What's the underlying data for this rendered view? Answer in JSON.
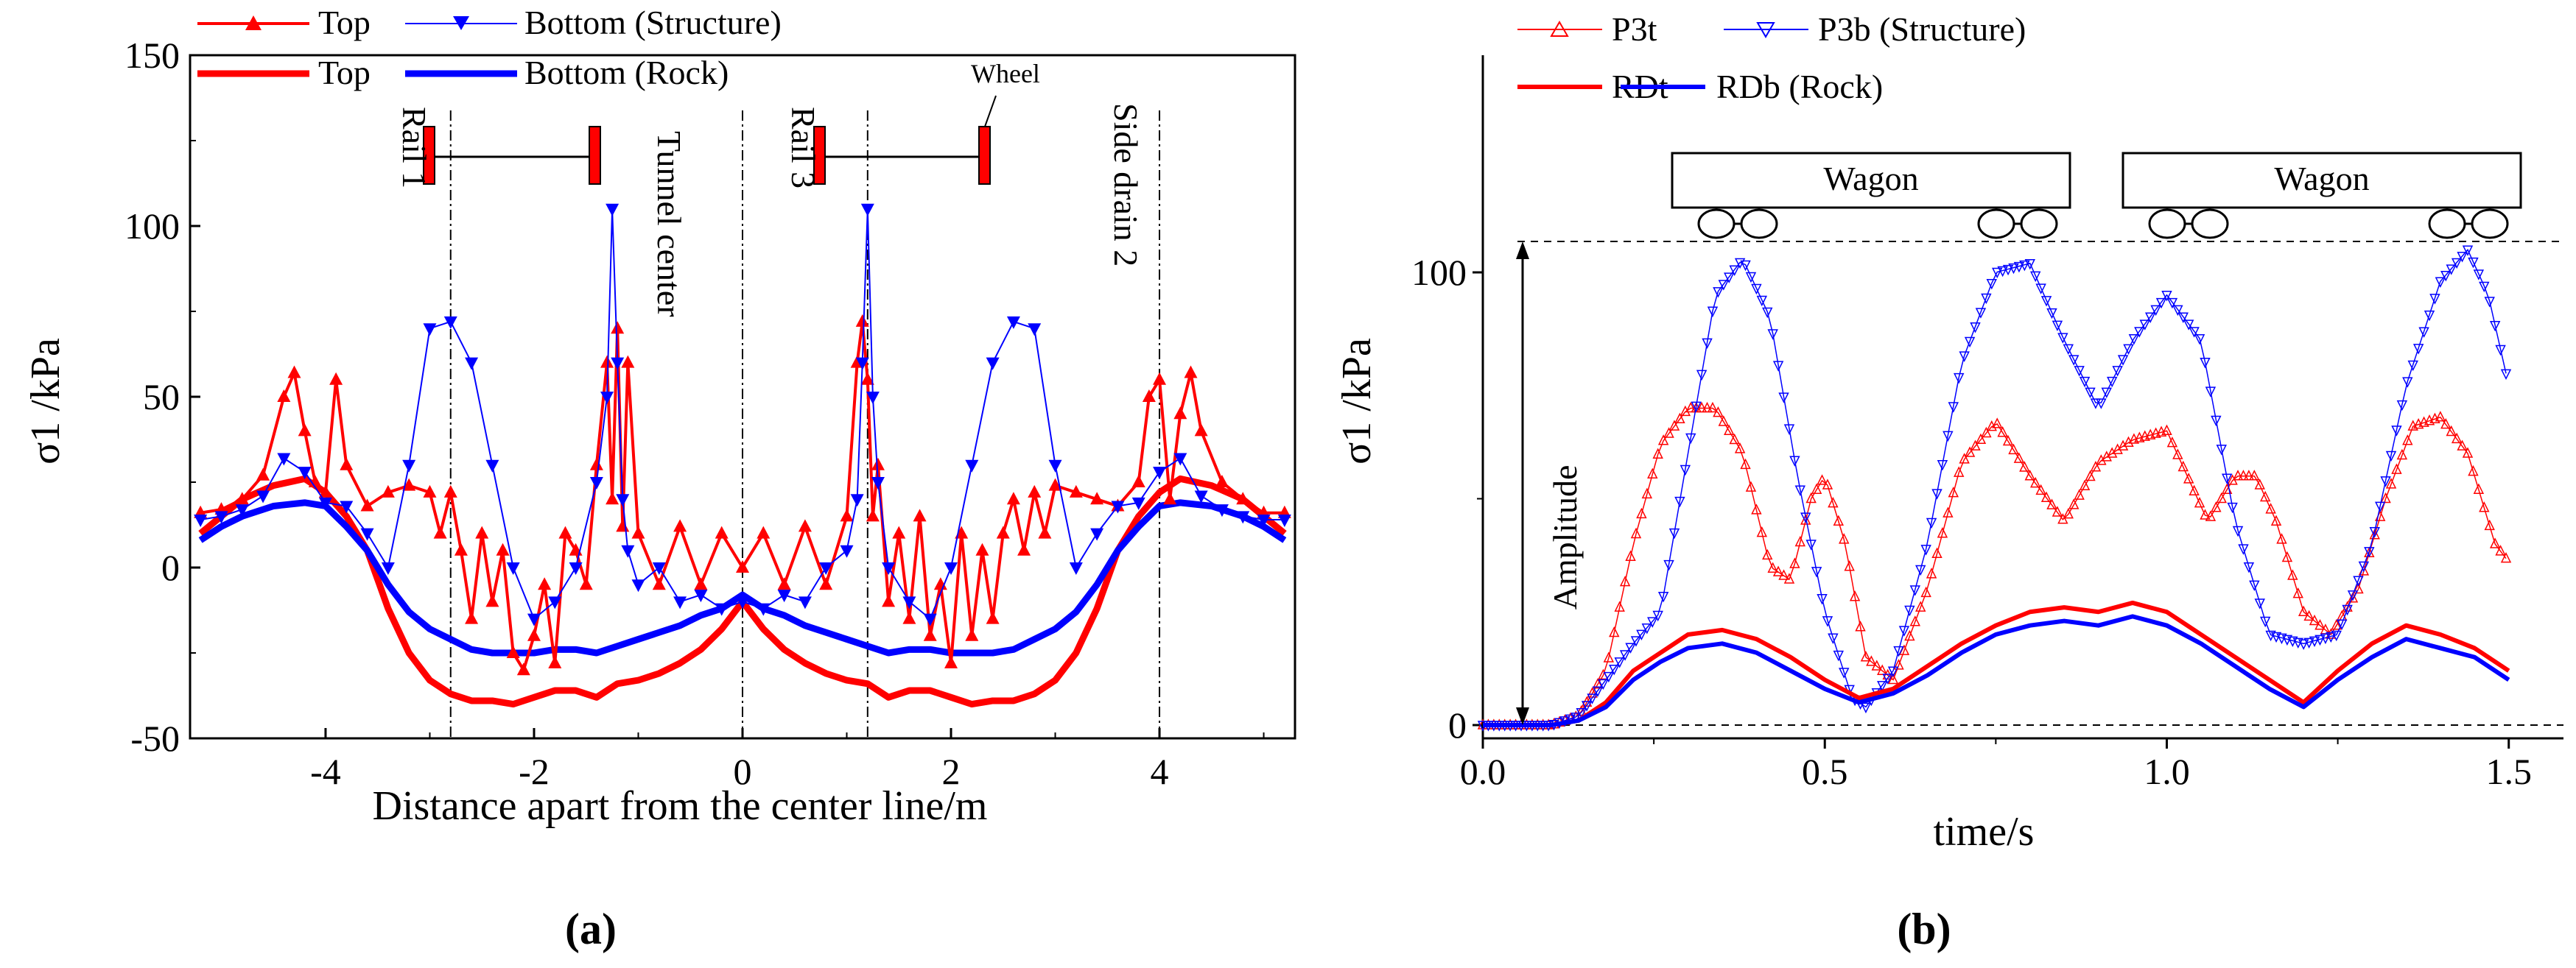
{
  "chart_data": [
    {
      "type": "line",
      "panel_label": "(a)",
      "xlabel": "Distance apart from the center line/m",
      "ylabel": "σ1 /kPa",
      "xlim": [
        -5.3,
        5.3
      ],
      "ylim": [
        -50,
        150
      ],
      "x_ticks": [
        "-4",
        "-2",
        "0",
        "2",
        "4"
      ],
      "y_ticks": [
        "-50",
        "0",
        "50",
        "100",
        "150"
      ],
      "legend": {
        "placement": "top",
        "entries": [
          "Top",
          "Bottom (Structure)",
          "Top",
          "Bottom (Rock)"
        ]
      },
      "annotations": {
        "rail1": "Rail 1",
        "tunnel_center": "Tunnel center",
        "rail3": "Rail 3",
        "side_drain": "Side drain 2",
        "wheel": "Wheel"
      },
      "vertical_lines_x": [
        -2.8,
        0,
        1.2,
        4.0
      ],
      "series": [
        {
          "name": "Top",
          "group": "Structure",
          "color": "#ff0000",
          "marker": "triangle-up",
          "x": [
            -5.2,
            -5.0,
            -4.8,
            -4.6,
            -4.4,
            -4.3,
            -4.2,
            -4.1,
            -4.0,
            -3.9,
            -3.8,
            -3.6,
            -3.4,
            -3.2,
            -3.0,
            -2.9,
            -2.8,
            -2.7,
            -2.6,
            -2.5,
            -2.4,
            -2.3,
            -2.2,
            -2.1,
            -2.0,
            -1.9,
            -1.8,
            -1.7,
            -1.6,
            -1.5,
            -1.4,
            -1.3,
            -1.25,
            -1.2,
            -1.15,
            -1.1,
            -1.0,
            -0.8,
            -0.6,
            -0.4,
            -0.2,
            0.0,
            0.2,
            0.4,
            0.6,
            0.8,
            1.0,
            1.1,
            1.15,
            1.2,
            1.25,
            1.3,
            1.4,
            1.5,
            1.6,
            1.7,
            1.8,
            1.9,
            2.0,
            2.1,
            2.2,
            2.3,
            2.4,
            2.5,
            2.6,
            2.7,
            2.8,
            2.9,
            3.0,
            3.2,
            3.4,
            3.6,
            3.8,
            3.9,
            4.0,
            4.1,
            4.2,
            4.3,
            4.4,
            4.6,
            4.8,
            5.0,
            5.2
          ],
          "values": [
            16,
            17,
            20,
            27,
            50,
            57,
            40,
            25,
            22,
            55,
            30,
            18,
            22,
            24,
            22,
            10,
            22,
            5,
            -15,
            10,
            -10,
            5,
            -25,
            -30,
            -20,
            -5,
            -28,
            10,
            5,
            -5,
            30,
            60,
            20,
            70,
            12,
            60,
            10,
            -5,
            12,
            -5,
            10,
            0,
            10,
            -5,
            12,
            -5,
            15,
            60,
            72,
            55,
            15,
            30,
            -10,
            10,
            -15,
            15,
            -20,
            -5,
            -28,
            10,
            -20,
            5,
            -15,
            10,
            20,
            5,
            22,
            10,
            24,
            22,
            20,
            18,
            25,
            50,
            55,
            20,
            45,
            57,
            40,
            25,
            20,
            16,
            16
          ]
        },
        {
          "name": "Bottom (Structure)",
          "group": "Structure",
          "color": "#0000ff",
          "marker": "triangle-down",
          "x": [
            -5.2,
            -5.0,
            -4.8,
            -4.6,
            -4.4,
            -4.2,
            -4.0,
            -3.8,
            -3.6,
            -3.4,
            -3.2,
            -3.0,
            -2.8,
            -2.6,
            -2.4,
            -2.2,
            -2.0,
            -1.8,
            -1.6,
            -1.4,
            -1.3,
            -1.25,
            -1.2,
            -1.15,
            -1.1,
            -1.0,
            -0.8,
            -0.6,
            -0.4,
            -0.2,
            0.0,
            0.2,
            0.4,
            0.6,
            0.8,
            1.0,
            1.1,
            1.15,
            1.2,
            1.25,
            1.3,
            1.4,
            1.6,
            1.8,
            2.0,
            2.2,
            2.4,
            2.6,
            2.8,
            3.0,
            3.2,
            3.4,
            3.6,
            3.8,
            4.0,
            4.2,
            4.4,
            4.6,
            4.8,
            5.0,
            5.2
          ],
          "values": [
            14,
            15,
            17,
            21,
            32,
            28,
            19,
            18,
            10,
            0,
            30,
            70,
            72,
            60,
            30,
            0,
            -15,
            -10,
            0,
            25,
            50,
            105,
            60,
            20,
            5,
            -5,
            0,
            -10,
            -8,
            -12,
            -10,
            -12,
            -8,
            -10,
            0,
            5,
            20,
            60,
            105,
            50,
            25,
            0,
            -10,
            -15,
            0,
            30,
            60,
            72,
            70,
            30,
            0,
            10,
            18,
            19,
            28,
            32,
            21,
            17,
            15,
            14,
            14
          ]
        },
        {
          "name": "Top",
          "group": "Rock",
          "color": "#ff0000",
          "marker": "none",
          "x": [
            -5.2,
            -5.0,
            -4.8,
            -4.5,
            -4.2,
            -4.0,
            -3.8,
            -3.6,
            -3.4,
            -3.2,
            -3.0,
            -2.8,
            -2.6,
            -2.4,
            -2.2,
            -2.0,
            -1.8,
            -1.6,
            -1.4,
            -1.2,
            -1.0,
            -0.8,
            -0.6,
            -0.4,
            -0.2,
            0.0,
            0.2,
            0.4,
            0.6,
            0.8,
            1.0,
            1.2,
            1.4,
            1.6,
            1.8,
            2.0,
            2.2,
            2.4,
            2.6,
            2.8,
            3.0,
            3.2,
            3.4,
            3.6,
            3.8,
            4.0,
            4.2,
            4.5,
            4.8,
            5.0,
            5.2
          ],
          "values": [
            10,
            15,
            20,
            24,
            26,
            22,
            15,
            5,
            -12,
            -25,
            -33,
            -37,
            -39,
            -39,
            -40,
            -38,
            -36,
            -36,
            -38,
            -34,
            -33,
            -31,
            -28,
            -24,
            -18,
            -10,
            -18,
            -24,
            -28,
            -31,
            -33,
            -34,
            -38,
            -36,
            -36,
            -38,
            -40,
            -39,
            -39,
            -37,
            -33,
            -25,
            -12,
            5,
            15,
            22,
            26,
            24,
            20,
            15,
            10
          ]
        },
        {
          "name": "Bottom (Rock)",
          "group": "Rock",
          "color": "#0000ff",
          "marker": "none",
          "x": [
            -5.2,
            -5.0,
            -4.8,
            -4.5,
            -4.2,
            -4.0,
            -3.8,
            -3.6,
            -3.4,
            -3.2,
            -3.0,
            -2.8,
            -2.6,
            -2.4,
            -2.2,
            -2.0,
            -1.8,
            -1.6,
            -1.4,
            -1.2,
            -1.0,
            -0.8,
            -0.6,
            -0.4,
            -0.2,
            0.0,
            0.2,
            0.4,
            0.6,
            0.8,
            1.0,
            1.2,
            1.4,
            1.6,
            1.8,
            2.0,
            2.2,
            2.4,
            2.6,
            2.8,
            3.0,
            3.2,
            3.4,
            3.6,
            3.8,
            4.0,
            4.2,
            4.5,
            4.8,
            5.0,
            5.2
          ],
          "values": [
            8,
            12,
            15,
            18,
            19,
            18,
            12,
            5,
            -5,
            -13,
            -18,
            -21,
            -24,
            -25,
            -25,
            -25,
            -24,
            -24,
            -25,
            -23,
            -21,
            -19,
            -17,
            -14,
            -12,
            -8,
            -12,
            -14,
            -17,
            -19,
            -21,
            -23,
            -25,
            -24,
            -24,
            -25,
            -25,
            -25,
            -24,
            -21,
            -18,
            -13,
            -5,
            5,
            12,
            18,
            19,
            18,
            15,
            12,
            8
          ]
        }
      ]
    },
    {
      "type": "line",
      "panel_label": "(b)",
      "xlabel": "time/s",
      "ylabel": "σ1 /kPa",
      "xlim": [
        0.0,
        1.58
      ],
      "ylim": [
        -5,
        150
      ],
      "x_ticks": [
        "0.0",
        "0.5",
        "1.0",
        "1.5"
      ],
      "y_ticks": [
        "0",
        "100"
      ],
      "legend": {
        "placement": "top-left",
        "entries": [
          "P3t",
          "P3b (Structure)",
          "RDt",
          "RDb (Rock)"
        ]
      },
      "annotations": {
        "amplitude": "Amplitude",
        "wagon1": "Wagon",
        "wagon2": "Wagon",
        "amplitude_range": [
          0,
          106
        ]
      },
      "series": [
        {
          "name": "P3t",
          "color": "#ff0000",
          "marker": "triangle-up-open",
          "x": [
            0.0,
            0.05,
            0.1,
            0.14,
            0.18,
            0.22,
            0.26,
            0.3,
            0.34,
            0.38,
            0.42,
            0.45,
            0.48,
            0.5,
            0.53,
            0.56,
            0.6,
            0.65,
            0.7,
            0.75,
            0.8,
            0.85,
            0.9,
            0.95,
            1.0,
            1.03,
            1.06,
            1.1,
            1.13,
            1.16,
            1.2,
            1.24,
            1.28,
            1.32,
            1.36,
            1.4,
            1.44,
            1.48,
            1.5
          ],
          "values": [
            0,
            0,
            0,
            2,
            12,
            40,
            62,
            70,
            70,
            60,
            35,
            32,
            50,
            55,
            40,
            15,
            10,
            30,
            58,
            67,
            55,
            45,
            58,
            63,
            65,
            55,
            45,
            55,
            55,
            45,
            25,
            20,
            30,
            50,
            66,
            68,
            60,
            40,
            36
          ]
        },
        {
          "name": "P3b (Structure)",
          "color": "#0000ff",
          "marker": "triangle-down-open",
          "x": [
            0.0,
            0.05,
            0.1,
            0.14,
            0.18,
            0.22,
            0.26,
            0.3,
            0.34,
            0.38,
            0.42,
            0.46,
            0.5,
            0.54,
            0.56,
            0.6,
            0.65,
            0.7,
            0.75,
            0.8,
            0.85,
            0.9,
            0.95,
            1.0,
            1.05,
            1.1,
            1.15,
            1.2,
            1.25,
            1.3,
            1.35,
            1.4,
            1.44,
            1.47,
            1.5
          ],
          "values": [
            0,
            0,
            0,
            2,
            10,
            18,
            25,
            60,
            95,
            103,
            90,
            55,
            25,
            6,
            4,
            12,
            40,
            80,
            100,
            102,
            85,
            70,
            85,
            95,
            85,
            45,
            20,
            18,
            20,
            40,
            75,
            98,
            105,
            95,
            75
          ]
        },
        {
          "name": "RDt",
          "color": "#ff0000",
          "marker": "none",
          "x": [
            0.0,
            0.05,
            0.1,
            0.14,
            0.18,
            0.22,
            0.26,
            0.3,
            0.35,
            0.4,
            0.45,
            0.5,
            0.55,
            0.6,
            0.65,
            0.7,
            0.75,
            0.8,
            0.85,
            0.9,
            0.95,
            1.0,
            1.05,
            1.1,
            1.15,
            1.2,
            1.25,
            1.3,
            1.35,
            1.4,
            1.45,
            1.5
          ],
          "values": [
            0,
            0,
            0,
            1,
            5,
            12,
            16,
            20,
            21,
            19,
            15,
            10,
            6,
            8,
            13,
            18,
            22,
            25,
            26,
            25,
            27,
            25,
            20,
            15,
            10,
            5,
            12,
            18,
            22,
            20,
            17,
            12
          ]
        },
        {
          "name": "RDb (Rock)",
          "color": "#0000ff",
          "marker": "none",
          "x": [
            0.0,
            0.05,
            0.1,
            0.14,
            0.18,
            0.22,
            0.26,
            0.3,
            0.35,
            0.4,
            0.45,
            0.5,
            0.55,
            0.6,
            0.65,
            0.7,
            0.75,
            0.8,
            0.85,
            0.9,
            0.95,
            1.0,
            1.05,
            1.1,
            1.15,
            1.2,
            1.25,
            1.3,
            1.35,
            1.4,
            1.45,
            1.5
          ],
          "values": [
            0,
            0,
            0,
            1,
            4,
            10,
            14,
            17,
            18,
            16,
            12,
            8,
            5,
            7,
            11,
            16,
            20,
            22,
            23,
            22,
            24,
            22,
            18,
            13,
            8,
            4,
            10,
            15,
            19,
            17,
            15,
            10
          ]
        }
      ]
    }
  ]
}
